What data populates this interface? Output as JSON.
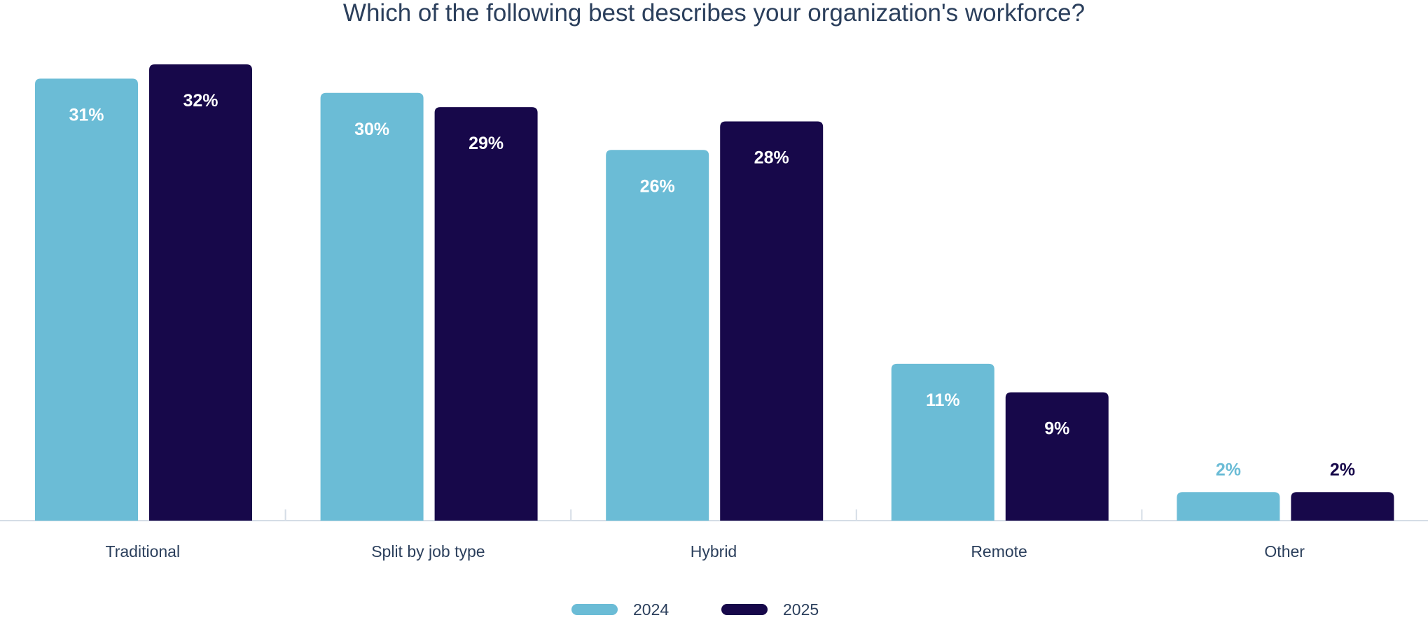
{
  "chart_data": {
    "type": "bar",
    "title": "Which of the following best describes your organization's workforce?",
    "categories": [
      "Traditional",
      "Split by job type",
      "Hybrid",
      "Remote",
      "Other"
    ],
    "series": [
      {
        "name": "2024",
        "values": [
          31,
          30,
          26,
          11,
          2
        ],
        "color": "#6bbcd6"
      },
      {
        "name": "2025",
        "values": [
          32,
          29,
          28,
          9,
          2
        ],
        "color": "#17084a"
      }
    ],
    "value_suffix": "%",
    "ylim": [
      0,
      32
    ],
    "grid": false,
    "legend": "bottom-center",
    "xlabel": "",
    "ylabel": ""
  }
}
